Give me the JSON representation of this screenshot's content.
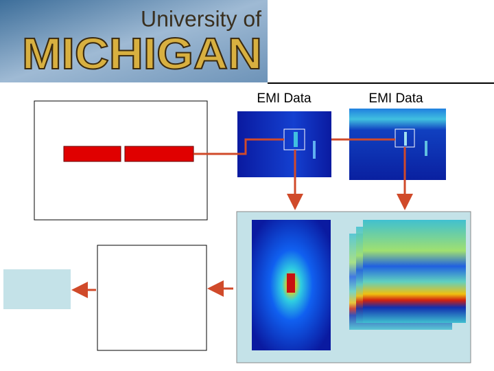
{
  "header": {
    "logo_top": "University of",
    "logo_main": "MICHIGAN"
  },
  "labels": [
    "EMI Data",
    "EMI Data"
  ]
}
